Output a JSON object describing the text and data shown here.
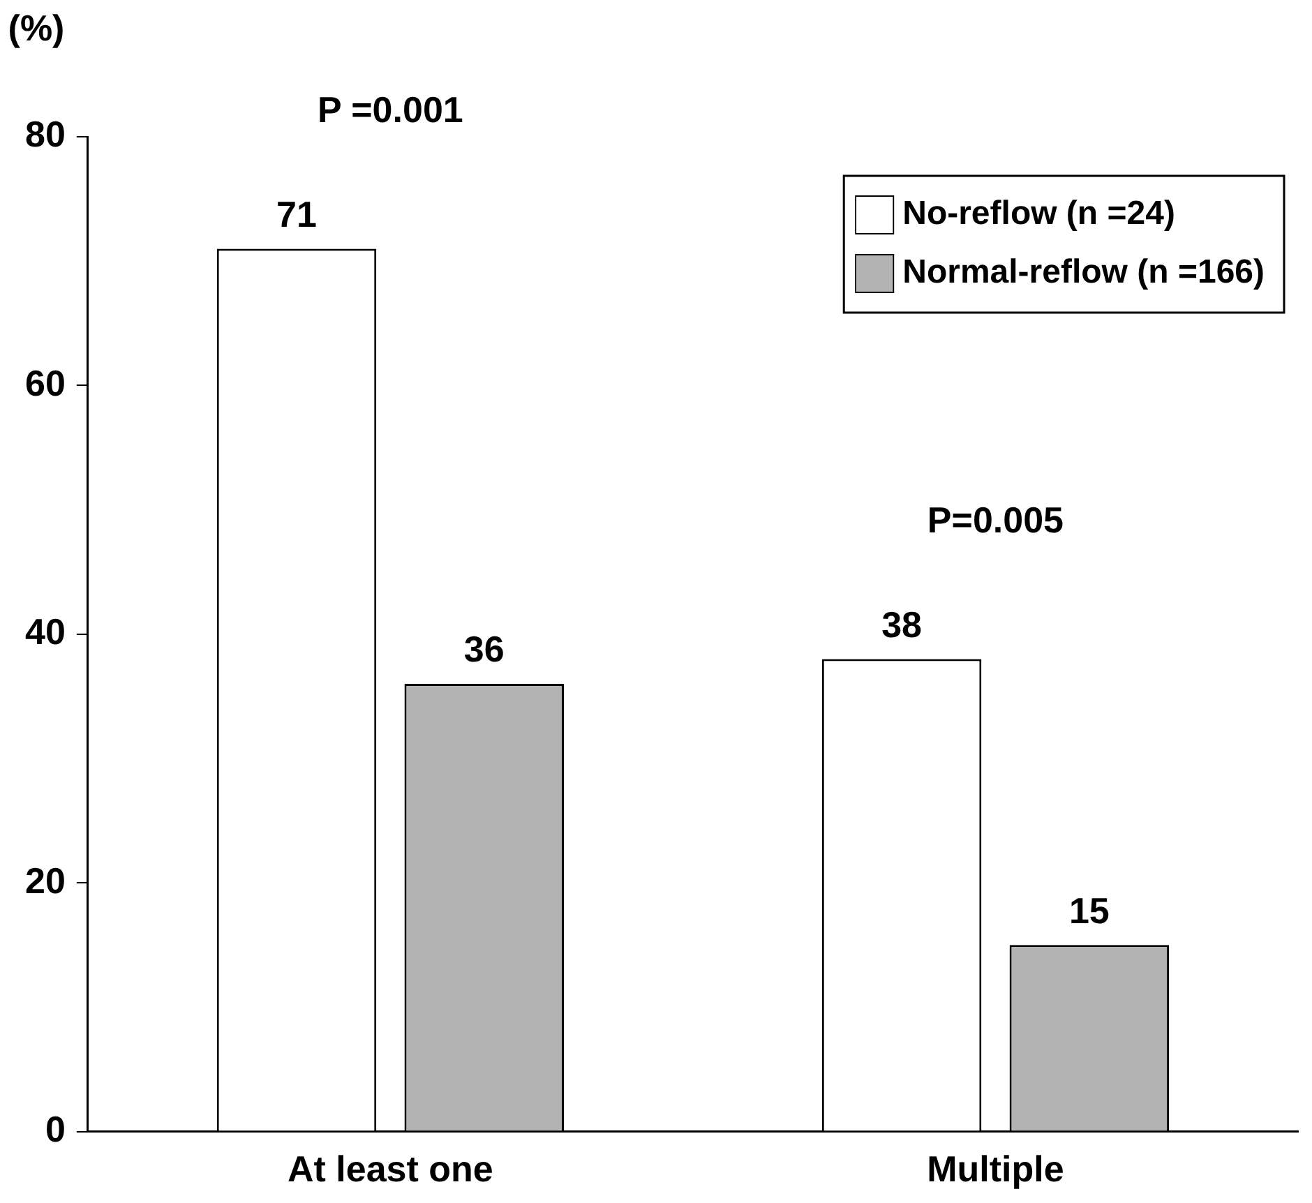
{
  "chart_data": {
    "type": "bar",
    "ylabel": "(%)",
    "categories": [
      "At least one",
      "Multiple"
    ],
    "series": [
      {
        "name": "No-reflow (n =24)",
        "color": "#ffffff",
        "values": [
          71,
          38
        ]
      },
      {
        "name": "Normal-reflow (n =166)",
        "color": "#b3b3b3",
        "values": [
          36,
          15
        ]
      }
    ],
    "ylim": [
      0,
      80
    ],
    "yticks": [
      0,
      20,
      40,
      60,
      80
    ],
    "grid": false,
    "legend": "top right",
    "data_labels": true,
    "annotations": [
      "P =0.001",
      "P=0.005"
    ]
  }
}
